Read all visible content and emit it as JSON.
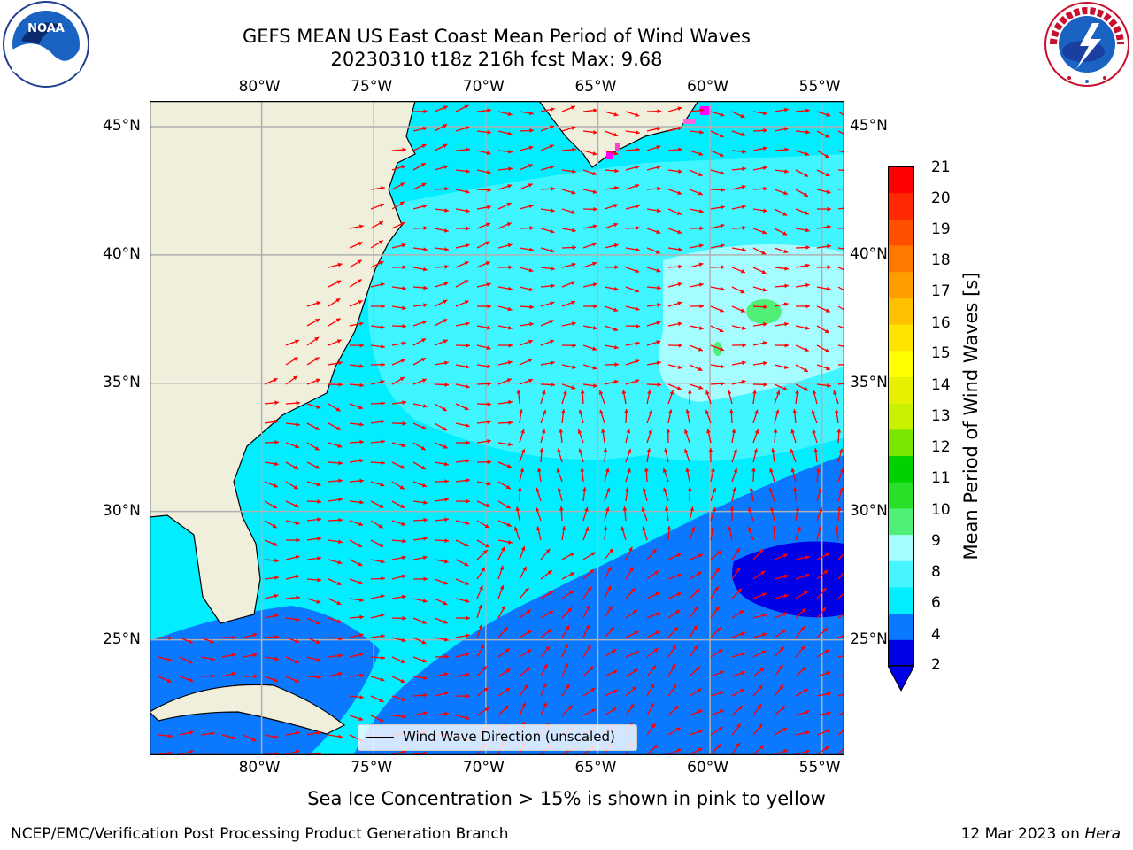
{
  "header": {
    "title_line1": "GEFS MEAN US East Coast Mean Period of Wind Waves",
    "title_line2": "20230310 t18z 216h fcst   Max: 9.68"
  },
  "logos": {
    "left": "NOAA",
    "right_text": "NATIONAL WEATHER SERVICE"
  },
  "map": {
    "lon_labels": [
      "80°W",
      "75°W",
      "70°W",
      "65°W",
      "60°W",
      "55°W"
    ],
    "lat_labels": [
      "45°N",
      "40°N",
      "35°N",
      "30°N",
      "25°N"
    ],
    "lon_range": [
      -85,
      -54
    ],
    "lat_range": [
      20.5,
      46
    ],
    "land_color": "#efefdc",
    "arrow_color": "#ff0000",
    "grid_color": "#b0b0b0",
    "legend_label": "Wind Wave Direction (unscaled)"
  },
  "colorbar": {
    "label": "Mean Period of Wind Waves [s]",
    "ticks": [
      "21",
      "20",
      "19",
      "18",
      "17",
      "16",
      "15",
      "14",
      "13",
      "12",
      "11",
      "10",
      "9",
      "8",
      "6",
      "4",
      "2"
    ],
    "colors": [
      "#0000e6",
      "#0a78ff",
      "#00eeff",
      "#46f5ff",
      "#a6fdff",
      "#50f078",
      "#28e028",
      "#00d200",
      "#78e600",
      "#c8f000",
      "#e6f000",
      "#ffff00",
      "#ffe400",
      "#ffc000",
      "#ff9c00",
      "#ff7800",
      "#ff5000",
      "#ff2800",
      "#ff0000"
    ],
    "extend_color": "#0000e6"
  },
  "footer": {
    "note": "Sea Ice Concentration > 15% is shown in pink to yellow",
    "credit": "NCEP/EMC/Verification Post Processing Product Generation Branch",
    "date_prefix": "12 Mar 2023 on ",
    "machine": "Hera"
  }
}
